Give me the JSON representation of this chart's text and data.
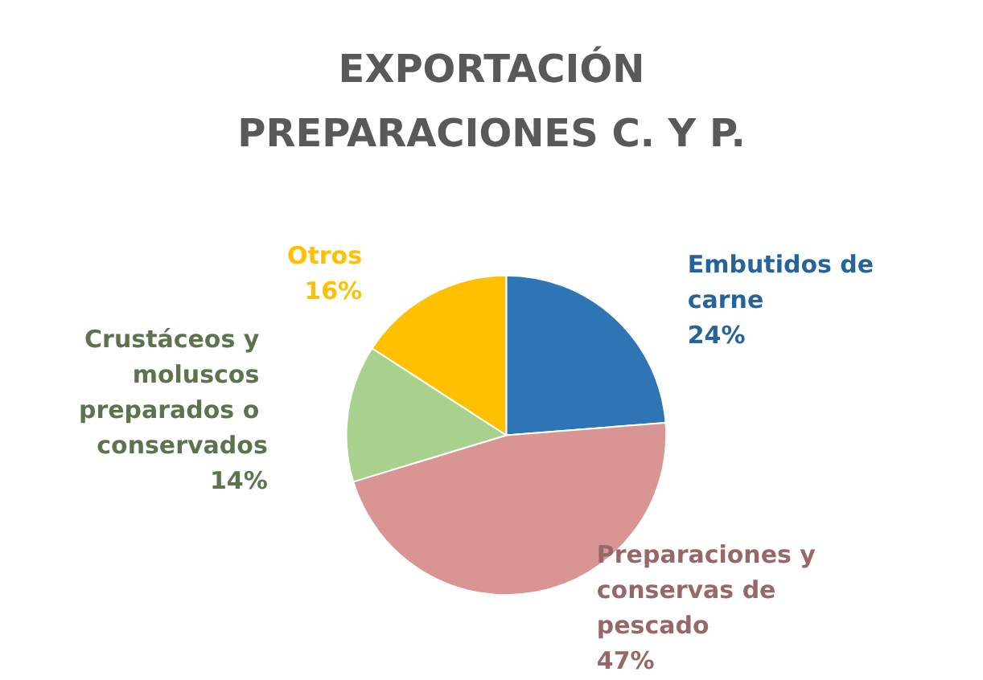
{
  "chart_data": {
    "type": "pie",
    "title": "EXPORTACIÓN\nPREPARACIONES C. Y P.",
    "categories": [
      "Embutidos de carne",
      "Preparaciones y conservas de pescado",
      "Crustáceos y moluscos preparados o conservados",
      "Otros"
    ],
    "values": [
      24,
      47,
      14,
      16
    ],
    "colors": [
      "#2e75b6",
      "#d99594",
      "#a9d18e",
      "#ffc000"
    ],
    "value_labels": [
      "24%",
      "47%",
      "14%",
      "16%"
    ],
    "legend": false
  }
}
